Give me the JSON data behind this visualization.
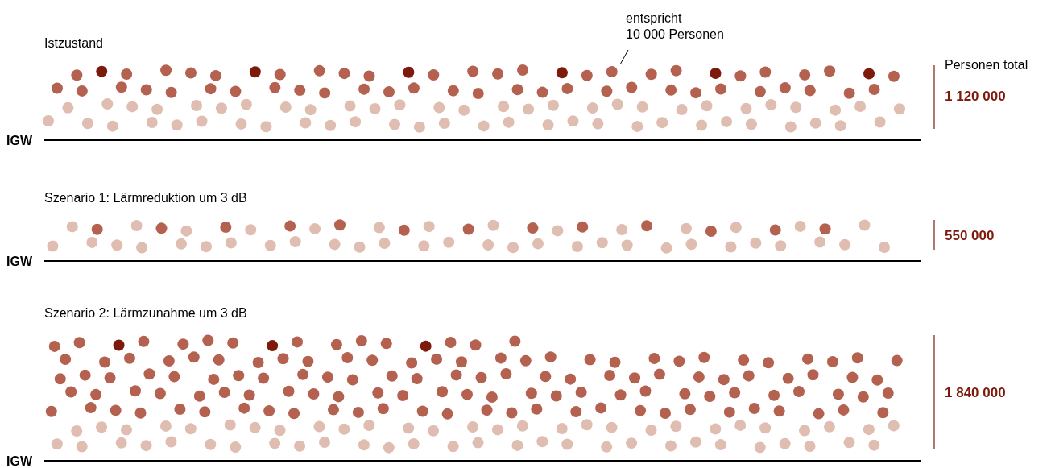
{
  "chart_data": [
    {
      "type": "other",
      "title": "Istzustand",
      "ylabel": "Personen total",
      "values": [
        1120000
      ],
      "value_labels": [
        "1 120 000"
      ],
      "color": "#7d1a0c",
      "annotations": [
        "entspricht 10 000 Personen",
        "IGW"
      ]
    },
    {
      "type": "other",
      "title": "Szenario 1: Lärmreduktion um 3 dB",
      "values": [
        550000
      ],
      "value_labels": [
        "550 000"
      ],
      "color": "#7d1a0c",
      "annotations": [
        "IGW"
      ]
    },
    {
      "type": "other",
      "title": "Szenario 2: Lärmzunahme um 3 dB",
      "values": [
        1840000
      ],
      "value_labels": [
        "1 840 000"
      ],
      "color": "#7d1a0c",
      "annotations": [
        "IGW"
      ]
    }
  ]
}
